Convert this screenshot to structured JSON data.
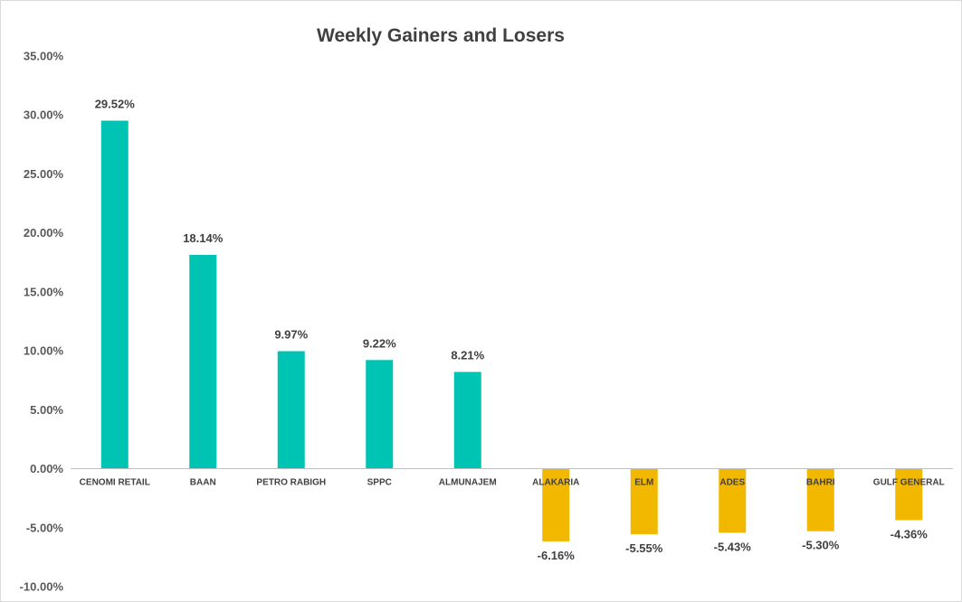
{
  "chart_data": {
    "type": "bar",
    "title": "Weekly Gainers and Losers",
    "xlabel": "",
    "ylabel": "",
    "ylim": [
      -10,
      35
    ],
    "y_ticks": [
      35,
      30,
      25,
      20,
      15,
      10,
      5,
      0,
      -5,
      -10
    ],
    "y_tick_labels": [
      "35.00%",
      "30.00%",
      "25.00%",
      "20.00%",
      "15.00%",
      "10.00%",
      "5.00%",
      "0.00%",
      "-5.00%",
      "-10.00%"
    ],
    "grid": false,
    "legend": "none",
    "categories": [
      "CENOMI RETAIL",
      "BAAN",
      "PETRO RABIGH",
      "SPPC",
      "ALMUNAJEM",
      "ALAKARIA",
      "ELM",
      "ADES",
      "BAHRI",
      "GULF GENERAL"
    ],
    "values": [
      29.52,
      18.14,
      9.97,
      9.22,
      8.21,
      -6.16,
      -5.55,
      -5.43,
      -5.3,
      -4.36
    ],
    "data_labels": [
      "29.52%",
      "18.14%",
      "9.97%",
      "9.22%",
      "8.21%",
      "-6.16%",
      "-5.55%",
      "-5.43%",
      "-5.30%",
      "-4.36%"
    ],
    "colors": {
      "gainers": "#00C4B3",
      "losers": "#F2B800",
      "axis": "#bfbfbf"
    }
  }
}
